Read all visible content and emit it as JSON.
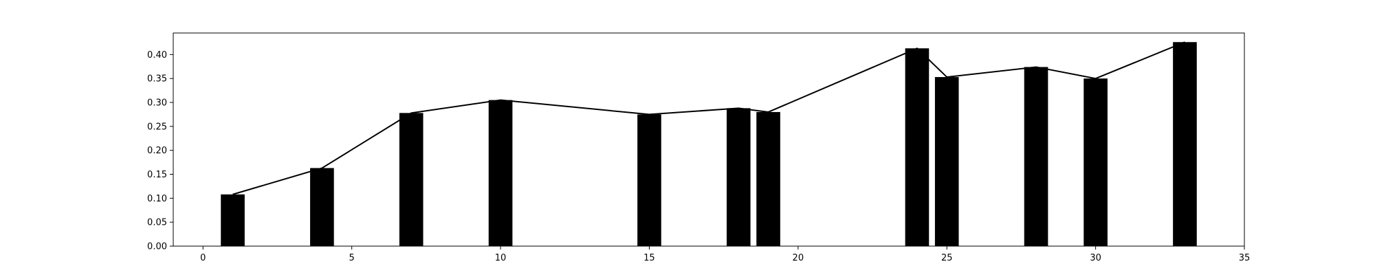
{
  "chart_data": {
    "type": "bar",
    "title": "",
    "xlabel": "",
    "ylabel": "",
    "xlim": [
      -1,
      35
    ],
    "ylim": [
      0,
      0.445
    ],
    "xticks": [
      0,
      5,
      10,
      15,
      20,
      25,
      30,
      35
    ],
    "yticks": [
      0.0,
      0.05,
      0.1,
      0.15,
      0.2,
      0.25,
      0.3,
      0.35,
      0.4
    ],
    "xtick_labels": [
      "0",
      "5",
      "10",
      "15",
      "20",
      "25",
      "30",
      "35"
    ],
    "ytick_labels": [
      "0.00",
      "0.05",
      "0.10",
      "0.15",
      "0.20",
      "0.25",
      "0.30",
      "0.35",
      "0.40"
    ],
    "bar_color": "#000000",
    "line_color": "#000000",
    "grid": false,
    "series": [
      {
        "type": "bar",
        "x": [
          1,
          4,
          7,
          10,
          15,
          18,
          19,
          24,
          25,
          28,
          30,
          33
        ],
        "values": [
          0.108,
          0.163,
          0.278,
          0.305,
          0.275,
          0.288,
          0.28,
          0.413,
          0.353,
          0.374,
          0.35,
          0.426
        ]
      },
      {
        "type": "line",
        "x": [
          1,
          4,
          7,
          10,
          15,
          18,
          19,
          24,
          25,
          28,
          30,
          33
        ],
        "values": [
          0.108,
          0.163,
          0.278,
          0.305,
          0.275,
          0.288,
          0.28,
          0.413,
          0.353,
          0.374,
          0.35,
          0.426
        ]
      }
    ]
  }
}
